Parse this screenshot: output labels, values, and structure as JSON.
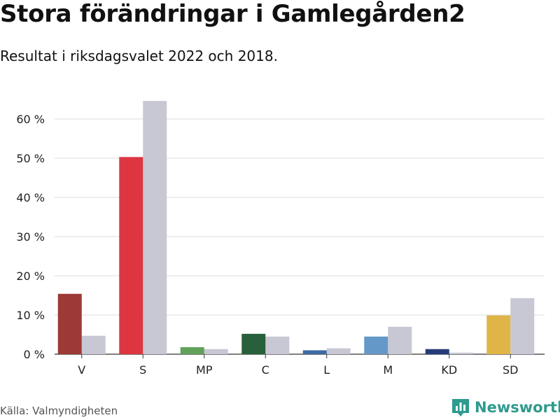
{
  "header": {
    "title": "Stora förändringar i Gamlegården2",
    "subtitle": "Resultat i riksdagsvalet 2022 och 2018."
  },
  "footer": {
    "source": "Källa: Valmyndigheten",
    "brand": "Newsworthy",
    "brand_icon": "bar-chart-icon"
  },
  "chart_data": {
    "type": "bar",
    "title": "Stora förändringar i Gamlegården2",
    "subtitle": "Resultat i riksdagsvalet 2022 och 2018.",
    "xlabel": "",
    "ylabel": "",
    "ylim": [
      0,
      65
    ],
    "yticks": [
      0,
      10,
      20,
      30,
      40,
      50,
      60
    ],
    "ytick_labels": [
      "0 %",
      "10 %",
      "20 %",
      "30 %",
      "40 %",
      "50 %",
      "60 %"
    ],
    "categories": [
      "V",
      "S",
      "MP",
      "C",
      "L",
      "M",
      "KD",
      "SD"
    ],
    "series": [
      {
        "name": "2022",
        "values": [
          15.4,
          50.3,
          1.8,
          5.2,
          1.0,
          4.5,
          1.3,
          9.9
        ],
        "colors": [
          "#9b3a36",
          "#dd3640",
          "#62a15a",
          "#27603a",
          "#3d6aa3",
          "#6498c8",
          "#263a78",
          "#e0b548"
        ]
      },
      {
        "name": "2018",
        "values": [
          4.7,
          64.6,
          1.3,
          4.5,
          1.5,
          7.0,
          0.4,
          14.3
        ],
        "color": "#c8c7d4"
      }
    ]
  }
}
